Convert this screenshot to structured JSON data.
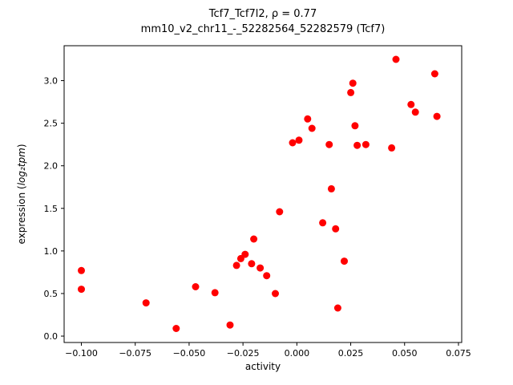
{
  "chart_data": {
    "type": "scatter",
    "title_line1": "Tcf7_Tcf7l2, ρ = 0.77",
    "title_line2": "mm10_v2_chr11_-_52282564_52282579 (Tcf7)",
    "xlabel": "activity",
    "ylabel_prefix": "expression (",
    "ylabel_math": "log₂tpm",
    "ylabel_suffix": ")",
    "marker_color": "#ff0000",
    "frame_color": "#000000",
    "xlim": [
      -0.108,
      0.0765
    ],
    "ylim": [
      -0.075,
      3.41
    ],
    "xticks": [
      -0.1,
      -0.075,
      -0.05,
      -0.025,
      0.0,
      0.025,
      0.05,
      0.075
    ],
    "xtick_labels": [
      "−0.100",
      "−0.075",
      "−0.050",
      "−0.025",
      "0.000",
      "0.025",
      "0.050",
      "0.075"
    ],
    "yticks": [
      0.0,
      0.5,
      1.0,
      1.5,
      2.0,
      2.5,
      3.0
    ],
    "ytick_labels": [
      "0.0",
      "0.5",
      "1.0",
      "1.5",
      "2.0",
      "2.5",
      "3.0"
    ],
    "grid": false,
    "legend": null,
    "points": [
      [
        -0.1,
        0.77
      ],
      [
        -0.1,
        0.55
      ],
      [
        -0.07,
        0.39
      ],
      [
        -0.056,
        0.09
      ],
      [
        -0.047,
        0.58
      ],
      [
        -0.038,
        0.51
      ],
      [
        -0.031,
        0.13
      ],
      [
        -0.028,
        0.83
      ],
      [
        -0.026,
        0.91
      ],
      [
        -0.024,
        0.96
      ],
      [
        -0.021,
        0.85
      ],
      [
        -0.02,
        1.14
      ],
      [
        -0.017,
        0.8
      ],
      [
        -0.014,
        0.71
      ],
      [
        -0.01,
        0.5
      ],
      [
        -0.008,
        1.46
      ],
      [
        -0.002,
        2.27
      ],
      [
        0.001,
        2.3
      ],
      [
        0.005,
        2.55
      ],
      [
        0.007,
        2.44
      ],
      [
        0.012,
        1.33
      ],
      [
        0.015,
        2.25
      ],
      [
        0.016,
        1.73
      ],
      [
        0.018,
        1.26
      ],
      [
        0.019,
        0.33
      ],
      [
        0.022,
        0.88
      ],
      [
        0.025,
        2.86
      ],
      [
        0.026,
        2.97
      ],
      [
        0.027,
        2.47
      ],
      [
        0.028,
        2.24
      ],
      [
        0.032,
        2.25
      ],
      [
        0.044,
        2.21
      ],
      [
        0.046,
        3.25
      ],
      [
        0.053,
        2.72
      ],
      [
        0.055,
        2.63
      ],
      [
        0.064,
        3.08
      ],
      [
        0.065,
        2.58
      ]
    ]
  }
}
